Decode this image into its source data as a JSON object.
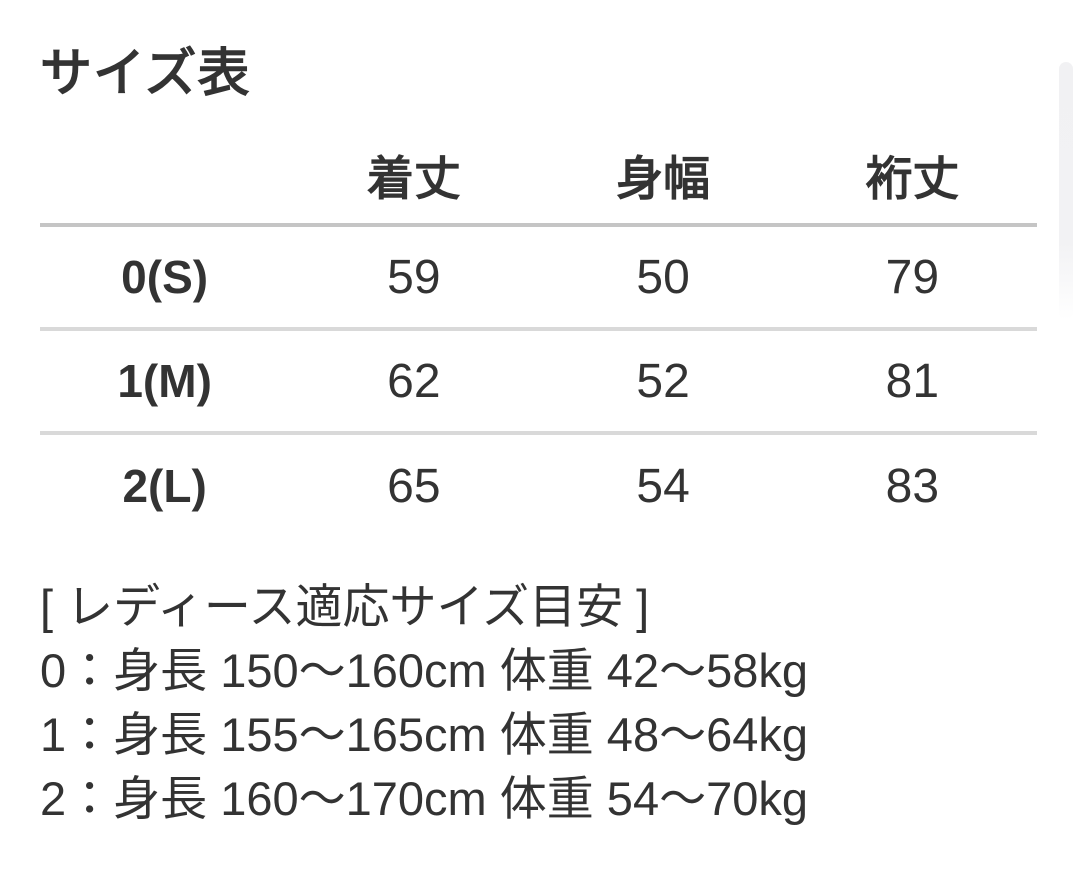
{
  "page": {
    "title": "サイズ表",
    "background_color": "#ffffff",
    "text_color": "#333333"
  },
  "size_table": {
    "corner_label": "",
    "columns": [
      "着丈",
      "身幅",
      "裄丈"
    ],
    "rows": [
      {
        "label": "0(S)",
        "values": [
          "59",
          "50",
          "79"
        ]
      },
      {
        "label": "1(M)",
        "values": [
          "62",
          "52",
          "81"
        ]
      },
      {
        "label": "2(L)",
        "values": [
          "65",
          "54",
          "83"
        ]
      }
    ],
    "header_rule_color": "#c5c5c5",
    "row_rule_color": "#d9d9d9"
  },
  "size_guide": {
    "heading": "[ レディース適応サイズ目安 ]",
    "lines": [
      "0：身長 150〜160cm 体重 42〜58kg",
      "1：身長 155〜165cm 体重 48〜64kg",
      "2：身長 160〜170cm 体重 54〜70kg"
    ]
  },
  "scrollbar": {
    "thumb_color": "#f2f2f4"
  }
}
